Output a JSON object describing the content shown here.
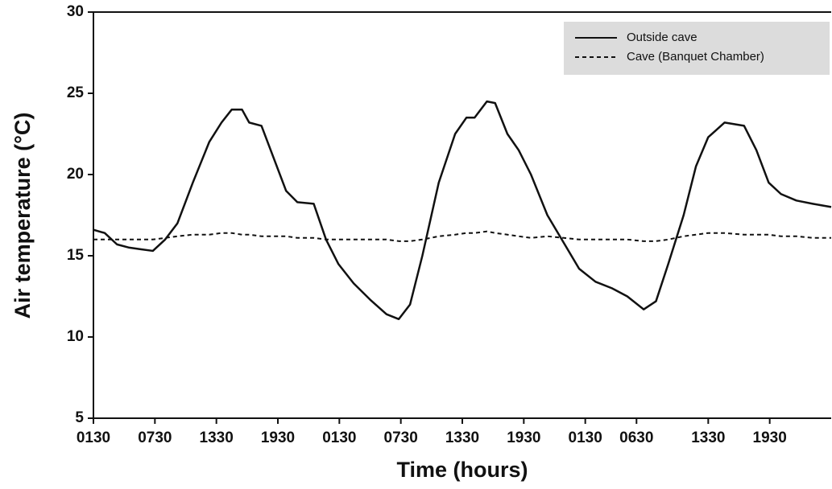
{
  "chart_data": {
    "type": "line",
    "xlabel": "Time (hours)",
    "ylabel": "Air temperature (°C)",
    "x": [
      0,
      1.1,
      2.3,
      3.5,
      4.6,
      5.8,
      7.0,
      8.2,
      9.7,
      11.3,
      12.5,
      13.5,
      14.5,
      15.2,
      16.4,
      17.6,
      18.8,
      19.9,
      21.5,
      22.7,
      23.9,
      25.4,
      27.0,
      28.6,
      29.8,
      30.9,
      32.1,
      33.7,
      35.3,
      36.4,
      37.2,
      38.4,
      39.2,
      40.4,
      41.5,
      42.7,
      44.3,
      45.9,
      47.4,
      49.0,
      50.6,
      52.1,
      53.7,
      54.9,
      56.1,
      57.6,
      58.8,
      60.0,
      61.6,
      63.5,
      64.7,
      65.9,
      67.1,
      68.6,
      70.2,
      72
    ],
    "series": [
      {
        "name": "Outside cave",
        "color": "#111111",
        "style": "solid",
        "values": [
          16.6,
          16.4,
          15.7,
          15.5,
          15.4,
          15.3,
          16.0,
          17.0,
          19.5,
          22.0,
          23.2,
          24.0,
          24.0,
          23.2,
          23.0,
          21.0,
          19.0,
          18.3,
          18.2,
          16.0,
          14.5,
          13.3,
          12.3,
          11.4,
          11.1,
          12.0,
          15.0,
          19.5,
          22.5,
          23.5,
          23.5,
          24.5,
          24.4,
          22.5,
          21.5,
          20.0,
          17.5,
          15.8,
          14.2,
          13.4,
          13.0,
          12.5,
          11.7,
          12.2,
          14.5,
          17.5,
          20.5,
          22.3,
          23.2,
          23.0,
          21.5,
          19.5,
          18.8,
          18.4,
          18.2,
          18.0
        ]
      },
      {
        "name": "Cave (Banquet Chamber)",
        "color": "#111111",
        "style": "dashed",
        "values": [
          16.0,
          16.0,
          16.0,
          16.0,
          16.0,
          16.0,
          16.1,
          16.2,
          16.3,
          16.3,
          16.4,
          16.4,
          16.3,
          16.3,
          16.2,
          16.2,
          16.2,
          16.1,
          16.1,
          16.0,
          16.0,
          16.0,
          16.0,
          16.0,
          15.9,
          15.9,
          16.0,
          16.2,
          16.3,
          16.4,
          16.4,
          16.5,
          16.4,
          16.3,
          16.2,
          16.1,
          16.2,
          16.1,
          16.0,
          16.0,
          16.0,
          16.0,
          15.9,
          15.9,
          16.0,
          16.2,
          16.3,
          16.4,
          16.4,
          16.3,
          16.3,
          16.3,
          16.2,
          16.2,
          16.1,
          16.1
        ]
      }
    ],
    "xlim": [
      0,
      72
    ],
    "xticks": [
      {
        "value": 0,
        "label": "0130"
      },
      {
        "value": 6,
        "label": "0730"
      },
      {
        "value": 12,
        "label": "1330"
      },
      {
        "value": 18,
        "label": "1930"
      },
      {
        "value": 24,
        "label": "0130"
      },
      {
        "value": 30,
        "label": "0730"
      },
      {
        "value": 36,
        "label": "1330"
      },
      {
        "value": 42,
        "label": "1930"
      },
      {
        "value": 48,
        "label": "0130"
      },
      {
        "value": 53,
        "label": "0630"
      },
      {
        "value": 60,
        "label": "1330"
      },
      {
        "value": 66,
        "label": "1930"
      }
    ],
    "ylim": [
      5,
      30
    ],
    "yticks": [
      5,
      10,
      15,
      20,
      25,
      30
    ],
    "legend": "upper right",
    "legend_bg": "#dcdcdc"
  }
}
